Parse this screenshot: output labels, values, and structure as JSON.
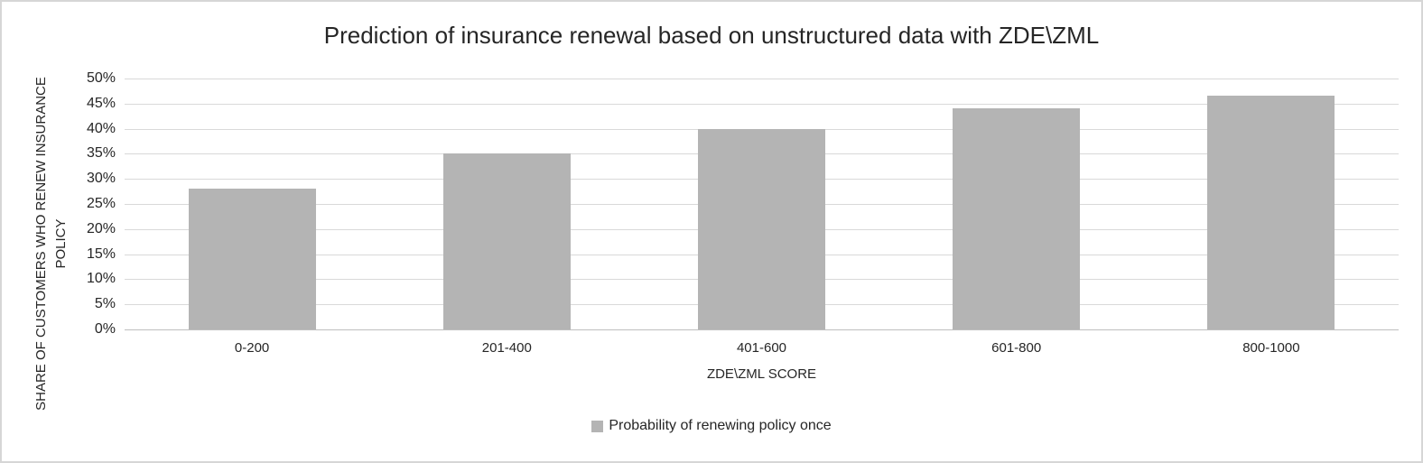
{
  "frame": {
    "background": "#ffffff",
    "border_color": "#d6d6d6"
  },
  "chart_data": {
    "type": "bar",
    "title": "Prediction of insurance renewal based on unstructured data with ZDE\\ZML",
    "categories": [
      "0-200",
      "201-400",
      "401-600",
      "601-800",
      "800-1000"
    ],
    "series": [
      {
        "name": "Probability of renewing policy once",
        "values": [
          28,
          35,
          40,
          44,
          46.5
        ]
      }
    ],
    "xlabel": "ZDE\\ZML SCORE",
    "ylabel_line1": "SHARE OF CUSTOMERS WHO RENEW INSURANCE",
    "ylabel_line2": "POLICY",
    "ylim": [
      0,
      50
    ],
    "ytick_step": 5,
    "ytick_suffix": "%",
    "grid": true,
    "legend_position": "bottom-center",
    "bar_color": "#b4b4b4",
    "gridline_color": "#d9d9d9",
    "axisline_color": "#bfbfbf",
    "text_color": "#262626"
  }
}
